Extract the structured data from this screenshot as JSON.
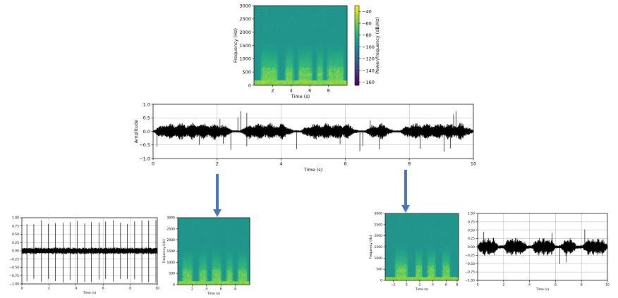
{
  "chart_data": [
    {
      "id": "spec_top",
      "type": "heatmap",
      "kind": "spectrogram",
      "xlabel": "Time (s)",
      "ylabel": "Frequency (Hz)",
      "xlim": [
        0,
        10
      ],
      "ylim": [
        0,
        3000
      ],
      "xticks": [
        "2",
        "4",
        "6",
        "8"
      ],
      "yticks": [
        "0",
        "500",
        "1000",
        "1500",
        "2000",
        "2500",
        "3000"
      ],
      "colormap": "viridis",
      "colorbar": {
        "label": "Power/frequency (dB/Hz)",
        "range": [
          -165,
          -30
        ],
        "ticks": [
          "−40",
          "−60",
          "−80",
          "−100",
          "−120",
          "−140",
          "−160"
        ]
      },
      "speech_segments": [
        [
          0.6,
          2.7
        ],
        [
          3.2,
          4.4
        ],
        [
          4.6,
          6.4
        ],
        [
          6.6,
          7.6
        ],
        [
          7.7,
          9.8
        ]
      ]
    },
    {
      "id": "wave_main",
      "type": "line",
      "kind": "waveform",
      "xlabel": "Time (s)",
      "ylabel": "Amplitude",
      "xlim": [
        0,
        10
      ],
      "ylim": [
        -1.0,
        1.0
      ],
      "xticks": [
        "0",
        "2",
        "4",
        "6",
        "8",
        "10"
      ],
      "yticks": [
        "1.0",
        "0.5",
        "0.0",
        "−0.5",
        "−1.0"
      ],
      "grid": true,
      "peak_amplitude": 0.95
    },
    {
      "id": "wave_left",
      "type": "line",
      "kind": "waveform",
      "xlabel": "Time (s)",
      "xlim": [
        0,
        10
      ],
      "ylim": [
        -1.0,
        1.0
      ],
      "xticks": [
        "0",
        "2",
        "4",
        "6",
        "8",
        "10"
      ],
      "yticks": [
        "1.00",
        "0.75",
        "0.50",
        "0.25",
        "0.00",
        "−0.25",
        "−0.50",
        "−0.75",
        "−1.00"
      ],
      "grid": true,
      "pattern": "periodic clicks"
    },
    {
      "id": "spec_left",
      "type": "heatmap",
      "kind": "spectrogram",
      "xlabel": "Time (s)",
      "ylabel": "Frequency (Hz)",
      "ylim": [
        0,
        3000
      ],
      "xticks": [
        "2",
        "4",
        "6",
        "8"
      ],
      "yticks": [
        "0",
        "500",
        "1000",
        "1500",
        "2000",
        "2500",
        "3000"
      ],
      "colormap": "viridis"
    },
    {
      "id": "spec_right",
      "type": "heatmap",
      "kind": "spectrogram",
      "xlabel": "Time (s)",
      "ylabel": "Frequency (Hz)",
      "ylim": [
        0,
        3000
      ],
      "xticks": [
        "−2",
        "0",
        "2",
        "4",
        "6",
        "8"
      ],
      "yticks": [
        "0",
        "500",
        "1000",
        "1500",
        "2000",
        "2500",
        "3000"
      ],
      "colormap": "viridis"
    },
    {
      "id": "wave_right",
      "type": "line",
      "kind": "waveform",
      "xlabel": "Time (s)",
      "xlim": [
        0,
        10
      ],
      "ylim": [
        -1.0,
        1.0
      ],
      "xticks": [
        "0",
        "2",
        "4",
        "6",
        "8",
        "10"
      ],
      "yticks": [
        "1.00",
        "0.75",
        "0.50",
        "0.25",
        "0.00",
        "−0.25",
        "−0.50",
        "−0.75",
        "−1.00"
      ],
      "grid": true,
      "pattern": "speech"
    }
  ],
  "arrows": {
    "color": "#4a76b8"
  }
}
